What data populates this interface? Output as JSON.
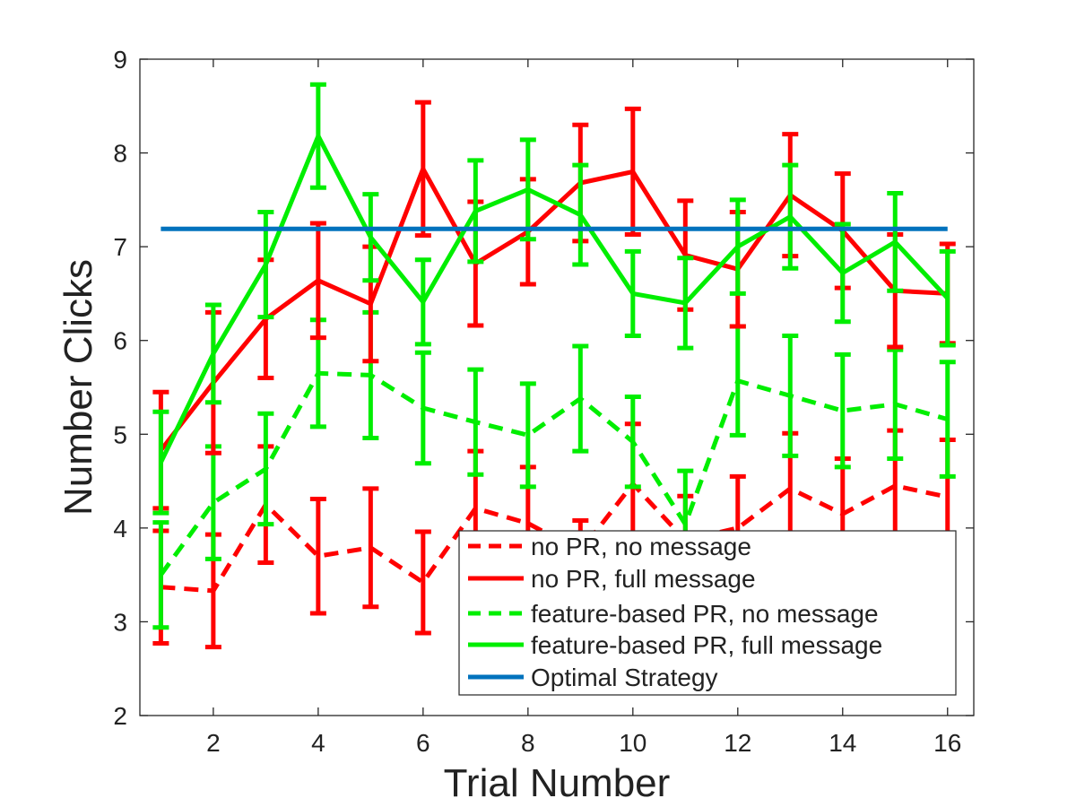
{
  "chart_data": {
    "type": "line",
    "title": "",
    "xlabel": "Trial Number",
    "ylabel": "Number Clicks",
    "xlim": [
      0.6,
      16.5
    ],
    "ylim": [
      2,
      9
    ],
    "xticks": [
      2,
      4,
      6,
      8,
      10,
      12,
      14,
      16
    ],
    "yticks": [
      2,
      3,
      4,
      5,
      6,
      7,
      8,
      9
    ],
    "grid": false,
    "legend_position": "bottom-right",
    "x": [
      1,
      2,
      3,
      4,
      5,
      6,
      7,
      8,
      9,
      10,
      11,
      12,
      13,
      14,
      15,
      16
    ],
    "series": [
      {
        "name": "no PR, no message",
        "color": "#ff0000",
        "dash": "dashed",
        "values": [
          3.37,
          3.33,
          4.25,
          3.7,
          3.79,
          3.42,
          4.21,
          4.05,
          3.75,
          4.47,
          3.87,
          4.0,
          4.42,
          4.15,
          4.45,
          4.33
        ],
        "error": [
          0.6,
          0.6,
          0.62,
          0.61,
          0.63,
          0.54,
          0.61,
          0.6,
          0.33,
          0.64,
          0.47,
          0.55,
          0.59,
          0.59,
          0.59,
          0.61
        ]
      },
      {
        "name": "no PR, full message",
        "color": "#ff0000",
        "dash": "solid",
        "values": [
          4.83,
          5.55,
          6.23,
          6.64,
          6.39,
          7.83,
          6.82,
          7.16,
          7.68,
          7.8,
          6.91,
          6.76,
          7.55,
          7.17,
          6.53,
          6.5
        ],
        "error": [
          0.62,
          0.75,
          0.63,
          0.61,
          0.61,
          0.71,
          0.66,
          0.56,
          0.62,
          0.67,
          0.58,
          0.61,
          0.65,
          0.61,
          0.6,
          0.53
        ]
      },
      {
        "name": "feature-based PR, no message",
        "color": "#00ee00",
        "dash": "dashed",
        "values": [
          3.5,
          4.27,
          4.63,
          5.65,
          5.63,
          5.28,
          5.13,
          4.99,
          5.38,
          4.92,
          4.04,
          5.57,
          5.41,
          5.25,
          5.32,
          5.16
        ],
        "error": [
          0.56,
          0.6,
          0.59,
          0.57,
          0.67,
          0.59,
          0.56,
          0.55,
          0.56,
          0.48,
          0.57,
          0.58,
          0.64,
          0.6,
          0.58,
          0.61
        ]
      },
      {
        "name": "feature-based PR, full message",
        "color": "#00ee00",
        "dash": "solid",
        "values": [
          4.7,
          5.86,
          6.81,
          8.18,
          7.1,
          6.41,
          7.38,
          7.61,
          7.34,
          6.5,
          6.4,
          7.0,
          7.32,
          6.72,
          7.05,
          6.45
        ],
        "error": [
          0.54,
          0.52,
          0.56,
          0.55,
          0.46,
          0.45,
          0.54,
          0.53,
          0.53,
          0.45,
          0.48,
          0.5,
          0.55,
          0.52,
          0.52,
          0.5
        ]
      },
      {
        "name": "Optimal Strategy",
        "color": "#0072bd",
        "dash": "solid",
        "values": [
          7.19,
          7.19,
          7.19,
          7.19,
          7.19,
          7.19,
          7.19,
          7.19,
          7.19,
          7.19,
          7.19,
          7.19,
          7.19,
          7.19,
          7.19,
          7.19
        ]
      }
    ]
  }
}
